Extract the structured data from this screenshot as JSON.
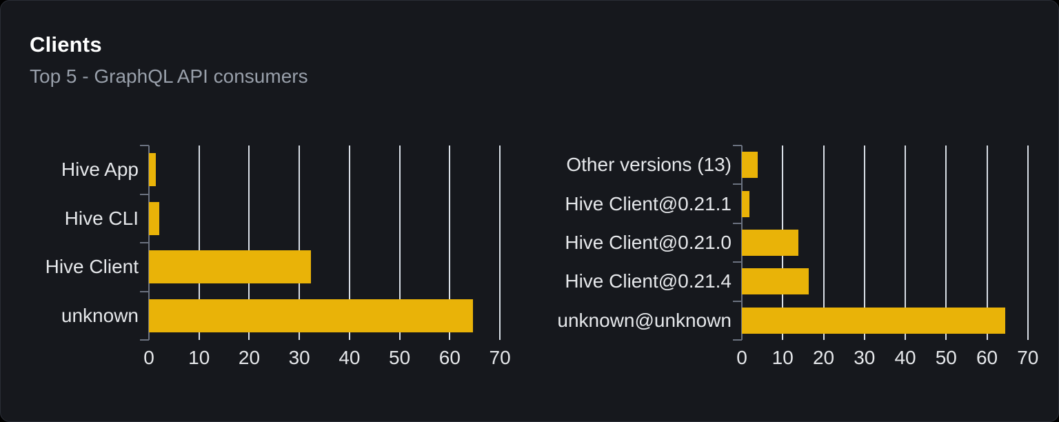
{
  "card": {
    "title": "Clients",
    "subtitle": "Top 5 - GraphQL API consumers"
  },
  "colors": {
    "bar": "#e9b308",
    "card_background": "#16181d",
    "page_background": "#000000",
    "grid_line": "#d9dfe7",
    "axis": "#6b7280",
    "label_text": "#e6e8eb",
    "title_text": "#ffffff",
    "subtitle_text": "#99a0ab"
  },
  "chart_data": [
    {
      "type": "bar",
      "orientation": "horizontal",
      "title": "",
      "categories": [
        "Hive App",
        "Hive CLI",
        "Hive Client",
        "unknown"
      ],
      "values": [
        1.4,
        2.1,
        32.3,
        64.6
      ],
      "xticks": [
        0,
        10,
        20,
        30,
        40,
        50,
        60,
        70
      ],
      "xlim": [
        0,
        71.5
      ],
      "grid": true,
      "legend": false
    },
    {
      "type": "bar",
      "orientation": "horizontal",
      "title": "",
      "categories": [
        "Other versions (13)",
        "Hive Client@0.21.1",
        "Hive Client@0.21.0",
        "Hive Client@0.21.4",
        "unknown@unknown"
      ],
      "values": [
        3.8,
        1.8,
        13.8,
        16.3,
        64.5
      ],
      "xticks": [
        0,
        10,
        20,
        30,
        40,
        50,
        60,
        70
      ],
      "xlim": [
        0,
        72.9
      ],
      "grid": true,
      "legend": false
    }
  ]
}
